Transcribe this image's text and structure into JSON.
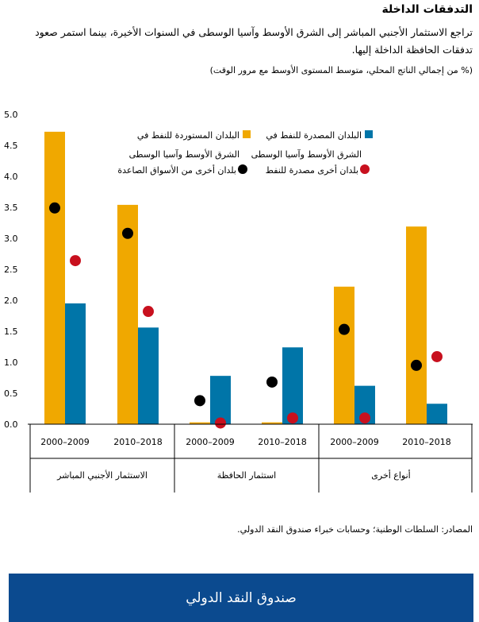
{
  "title": "التدفقات الداخلة",
  "subtitle": "تراجع الاستثمار الأجنبي المباشر إلى الشرق الأوسط وآسيا الوسطى في السنوات الأخيرة، بينما استمر صعود تدفقات الحافظة الداخلة إليها.",
  "unit": "(% من إجمالي الناتج المحلي، متوسط المستوى الأوسط مع مرور الوقت)",
  "source": "المصادر: السلطات الوطنية؛ وحسابات خبراء صندوق النقد الدولي.",
  "banner": "صندوق النقد الدولي",
  "colors": {
    "orange": "#f0a800",
    "blue": "#0075a8",
    "black": "#000000",
    "red": "#c8101e"
  },
  "chart_data": {
    "type": "bar",
    "ylim": [
      0,
      5
    ],
    "yticks": [
      "0.0",
      "0.5",
      "1.0",
      "1.5",
      "2.0",
      "2.5",
      "3.0",
      "3.5",
      "4.0",
      "4.5",
      "5.0"
    ],
    "groups": [
      "الاستثمار الأجنبي المباشر",
      "استثمار الحافظة",
      "أنواع أخرى"
    ],
    "categories": [
      "2000–2009",
      "2010–2018",
      "2000–2009",
      "2010–2018",
      "2000–2009",
      "2010–2018"
    ],
    "legend": {
      "orange": "البلدان المستوردة للنفط في الشرق الأوسط وآسيا الوسطى",
      "blue": "البلدان المصدرة للنفط في الشرق الأوسط وآسيا الوسطى",
      "red": "بلدان أخرى مصدرة للنفط",
      "black": "بلدان أخرى من الأسواق الصاعدة"
    },
    "series": [
      {
        "name": "orange",
        "kind": "bar",
        "values": [
          4.72,
          3.54,
          0.03,
          0.03,
          2.22,
          3.19
        ]
      },
      {
        "name": "blue",
        "kind": "bar",
        "values": [
          1.95,
          1.56,
          0.78,
          1.24,
          0.62,
          0.33
        ]
      },
      {
        "name": "black",
        "kind": "dot",
        "values": [
          3.49,
          3.08,
          0.38,
          0.68,
          1.53,
          0.95
        ]
      },
      {
        "name": "red",
        "kind": "dot",
        "values": [
          2.64,
          1.82,
          0.02,
          0.1,
          0.1,
          1.09
        ]
      }
    ]
  }
}
